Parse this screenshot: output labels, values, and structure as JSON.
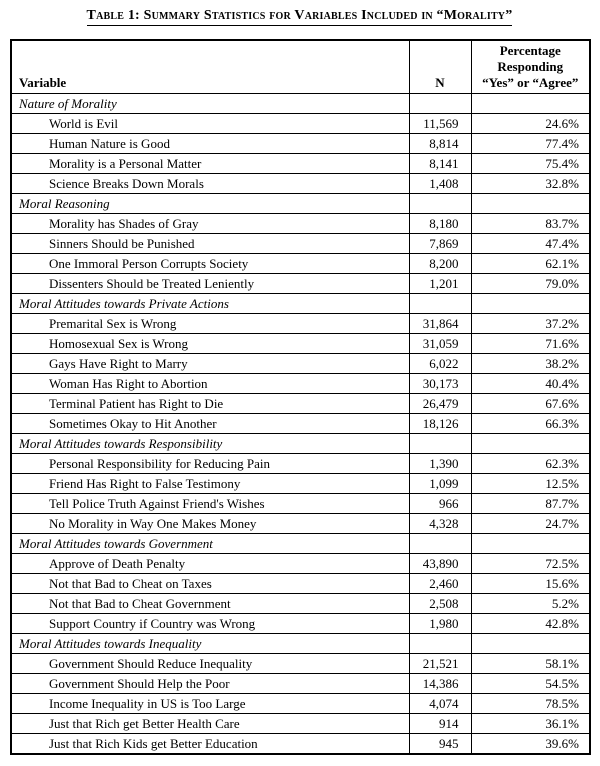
{
  "page": {
    "title": "Table 1: Summary Statistics for Variables Included in “Morality”"
  },
  "colors": {
    "background": "#ffffff",
    "text": "#000000",
    "border": "#000000"
  },
  "table": {
    "header": {
      "variable": "Variable",
      "n": "N",
      "percentage_lines": [
        "Percentage",
        "Responding",
        "“Yes” or “Agree”"
      ]
    },
    "rows": [
      {
        "type": "section",
        "label": "Nature of Morality"
      },
      {
        "type": "data",
        "label": "World is Evil",
        "n": "11,569",
        "pct": "24.6%"
      },
      {
        "type": "data",
        "label": "Human Nature is Good",
        "n": "8,814",
        "pct": "77.4%"
      },
      {
        "type": "data",
        "label": "Morality is a Personal Matter",
        "n": "8,141",
        "pct": "75.4%"
      },
      {
        "type": "data",
        "label": "Science Breaks Down Morals",
        "n": "1,408",
        "pct": "32.8%"
      },
      {
        "type": "section",
        "label": "Moral Reasoning"
      },
      {
        "type": "data",
        "label": "Morality has Shades of Gray",
        "n": "8,180",
        "pct": "83.7%"
      },
      {
        "type": "data",
        "label": "Sinners Should be Punished",
        "n": "7,869",
        "pct": "47.4%"
      },
      {
        "type": "data",
        "label": "One Immoral Person Corrupts Society",
        "n": "8,200",
        "pct": "62.1%"
      },
      {
        "type": "data",
        "label": "Dissenters Should be Treated Leniently",
        "n": "1,201",
        "pct": "79.0%"
      },
      {
        "type": "section",
        "label": "Moral Attitudes towards Private Actions"
      },
      {
        "type": "data",
        "label": "Premarital Sex is Wrong",
        "n": "31,864",
        "pct": "37.2%"
      },
      {
        "type": "data",
        "label": "Homosexual Sex is Wrong",
        "n": "31,059",
        "pct": "71.6%"
      },
      {
        "type": "data",
        "label": "Gays Have Right to Marry",
        "n": "6,022",
        "pct": "38.2%"
      },
      {
        "type": "data",
        "label": "Woman Has Right to Abortion",
        "n": "30,173",
        "pct": "40.4%"
      },
      {
        "type": "data",
        "label": "Terminal Patient has Right to Die",
        "n": "26,479",
        "pct": "67.6%"
      },
      {
        "type": "data",
        "label": "Sometimes Okay to Hit Another",
        "n": "18,126",
        "pct": "66.3%"
      },
      {
        "type": "section",
        "label": "Moral Attitudes towards Responsibility"
      },
      {
        "type": "data",
        "label": "Personal Responsibility for Reducing Pain",
        "n": "1,390",
        "pct": "62.3%"
      },
      {
        "type": "data",
        "label": "Friend Has Right to False Testimony",
        "n": "1,099",
        "pct": "12.5%"
      },
      {
        "type": "data",
        "label": "Tell Police Truth Against Friend's Wishes",
        "n": "966",
        "pct": "87.7%"
      },
      {
        "type": "data",
        "label": "No Morality in Way One Makes Money",
        "n": "4,328",
        "pct": "24.7%"
      },
      {
        "type": "section",
        "label": "Moral Attitudes towards Government"
      },
      {
        "type": "data",
        "label": "Approve of Death Penalty",
        "n": "43,890",
        "pct": "72.5%"
      },
      {
        "type": "data",
        "label": "Not that Bad to Cheat on Taxes",
        "n": "2,460",
        "pct": "15.6%"
      },
      {
        "type": "data",
        "label": "Not that Bad to Cheat Government",
        "n": "2,508",
        "pct": "5.2%"
      },
      {
        "type": "data",
        "label": "Support Country if Country was Wrong",
        "n": "1,980",
        "pct": "42.8%"
      },
      {
        "type": "section",
        "label": "Moral Attitudes towards Inequality"
      },
      {
        "type": "data",
        "label": "Government Should Reduce Inequality",
        "n": "21,521",
        "pct": "58.1%"
      },
      {
        "type": "data",
        "label": "Government Should Help the Poor",
        "n": "14,386",
        "pct": "54.5%"
      },
      {
        "type": "data",
        "label": "Income Inequality in US is Too Large",
        "n": "4,074",
        "pct": "78.5%"
      },
      {
        "type": "data",
        "label": "Just that Rich get Better Health Care",
        "n": "914",
        "pct": "36.1%"
      },
      {
        "type": "data",
        "label": "Just that Rich Kids get Better Education",
        "n": "945",
        "pct": "39.6%"
      }
    ]
  }
}
